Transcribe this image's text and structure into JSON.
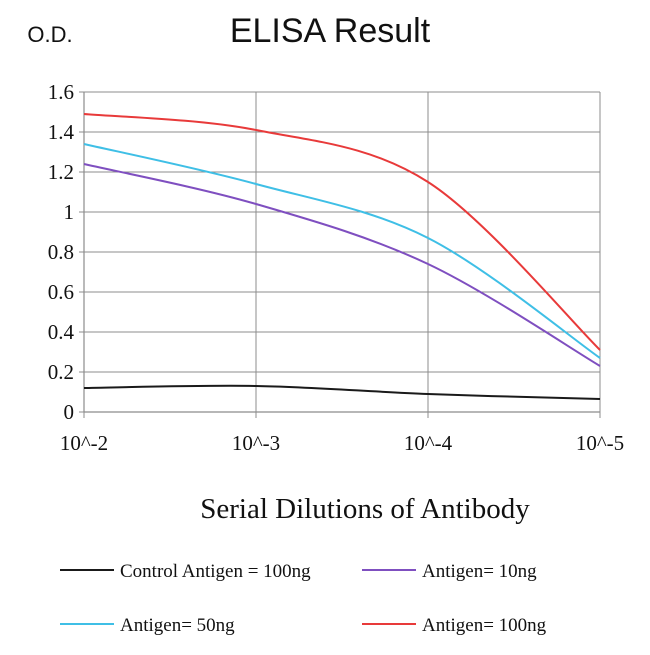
{
  "chart_data": {
    "type": "line",
    "title": "ELISA Result",
    "ylabel": "O.D.",
    "xlabel": "Serial Dilutions of Antibody",
    "categories": [
      "10^-2",
      "10^-3",
      "10^-4",
      "10^-5"
    ],
    "ylim": [
      0,
      1.6
    ],
    "yticks": [
      "0",
      "0.2",
      "0.4",
      "0.6",
      "0.8",
      "1",
      "1.2",
      "1.4",
      "1.6"
    ],
    "grid": true,
    "legend_position": "bottom",
    "series": [
      {
        "name": "Control Antigen = 100ng",
        "color": "#1a1a1a",
        "values": [
          0.12,
          0.13,
          0.09,
          0.065
        ]
      },
      {
        "name": "Antigen= 10ng",
        "color": "#7f4fc0",
        "values": [
          1.24,
          1.04,
          0.74,
          0.23
        ]
      },
      {
        "name": "Antigen= 50ng",
        "color": "#3fbfe6",
        "values": [
          1.34,
          1.14,
          0.87,
          0.27
        ]
      },
      {
        "name": "Antigen= 100ng",
        "color": "#e83a3a",
        "values": [
          1.49,
          1.41,
          1.15,
          0.31
        ]
      }
    ]
  }
}
